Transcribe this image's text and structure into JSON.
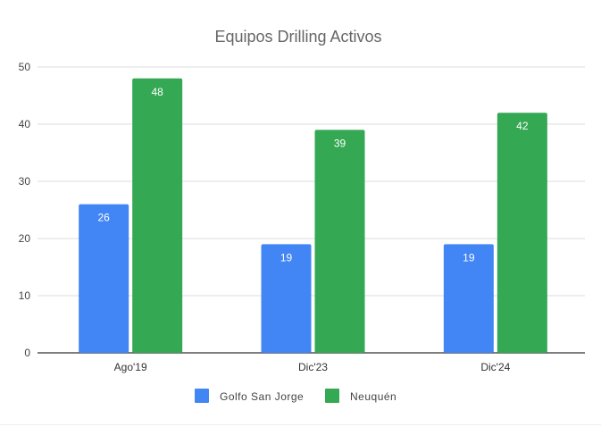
{
  "chart_data": {
    "type": "bar",
    "title": "Equipos Drilling Activos",
    "categories": [
      "Ago'19",
      "Dic'23",
      "Dic'24"
    ],
    "series": [
      {
        "name": "Golfo San Jorge",
        "color": "#4285f4",
        "values": [
          26,
          19,
          19
        ]
      },
      {
        "name": "Neuquén",
        "color": "#34a853",
        "values": [
          48,
          39,
          42
        ]
      }
    ],
    "xlabel": "",
    "ylabel": "",
    "ylim": [
      0,
      50
    ],
    "yticks": [
      0,
      10,
      20,
      30,
      40,
      50
    ],
    "grid": true,
    "legend": "bottom",
    "data_labels": true
  }
}
